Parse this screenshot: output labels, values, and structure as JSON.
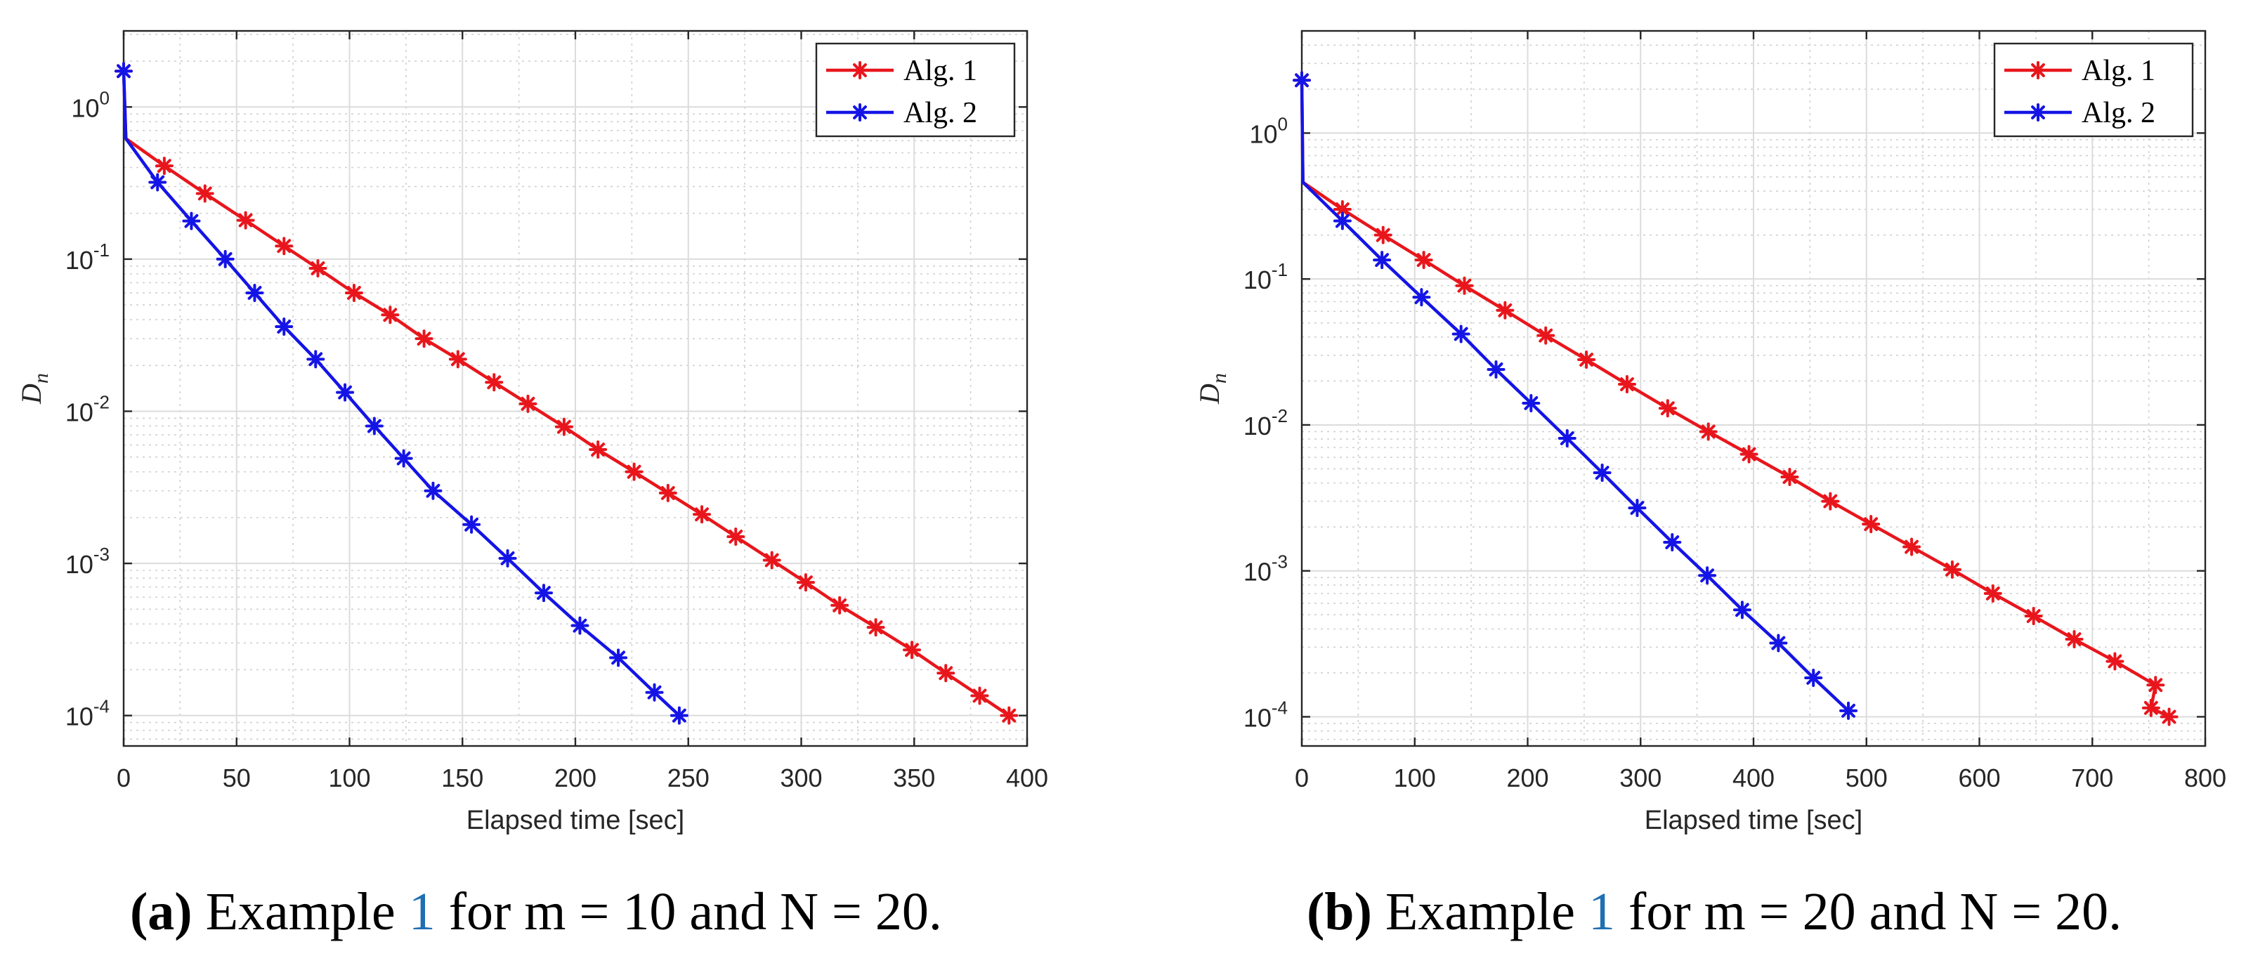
{
  "chart_data": [
    {
      "type": "line",
      "yscale": "log",
      "xlabel": "Elapsed time [sec]",
      "ylabel": "D_n",
      "ylabel_base": "D",
      "ylabel_sub": "n",
      "xlim": [
        0,
        400
      ],
      "ylim_exponents": [
        -4.2,
        0.5
      ],
      "xticks": [
        0,
        50,
        100,
        150,
        200,
        250,
        300,
        350,
        400
      ],
      "yticks": [
        -4,
        -3,
        -2,
        -1,
        0
      ],
      "grid": true,
      "legend_position": "top-right",
      "series": [
        {
          "name": "Alg. 1",
          "color": "#e8161c",
          "points": [
            [
              0,
              1.72
            ],
            [
              1,
              0.62
            ],
            [
              18,
              0.41
            ],
            [
              36,
              0.27
            ],
            [
              54,
              0.18
            ],
            [
              71,
              0.122
            ],
            [
              86,
              0.087
            ],
            [
              102,
              0.06
            ],
            [
              118,
              0.043
            ],
            [
              133,
              0.03
            ],
            [
              148,
              0.022
            ],
            [
              164,
              0.0155
            ],
            [
              179,
              0.0112
            ],
            [
              195,
              0.0079
            ],
            [
              210,
              0.0056
            ],
            [
              226,
              0.004
            ],
            [
              241,
              0.0029
            ],
            [
              256,
              0.0021
            ],
            [
              271,
              0.0015
            ],
            [
              287,
              0.00105
            ],
            [
              302,
              0.00075
            ],
            [
              317,
              0.00053
            ],
            [
              333,
              0.00038
            ],
            [
              349,
              0.00027
            ],
            [
              364,
              0.00019
            ],
            [
              379,
              0.000135
            ],
            [
              392,
              0.0001
            ]
          ],
          "marker_start": 2
        },
        {
          "name": "Alg. 2",
          "color": "#1414e6",
          "points": [
            [
              0,
              1.72
            ],
            [
              1,
              0.62
            ],
            [
              15,
              0.32
            ],
            [
              30,
              0.178
            ],
            [
              45,
              0.1
            ],
            [
              58,
              0.06
            ],
            [
              71,
              0.036
            ],
            [
              85,
              0.022
            ],
            [
              98,
              0.0133
            ],
            [
              111,
              0.008
            ],
            [
              124,
              0.0049
            ],
            [
              137,
              0.003
            ],
            [
              154,
              0.0018
            ],
            [
              170,
              0.00108
            ],
            [
              186,
              0.00064
            ],
            [
              202,
              0.00039
            ],
            [
              219,
              0.00024
            ],
            [
              235,
              0.000142
            ],
            [
              246,
              0.0001
            ]
          ],
          "marker_start": 2
        }
      ],
      "marker_first": 1.72
    },
    {
      "type": "line",
      "yscale": "log",
      "xlabel": "Elapsed time [sec]",
      "ylabel": "D_n",
      "ylabel_base": "D",
      "ylabel_sub": "n",
      "xlim": [
        0,
        800
      ],
      "ylim_exponents": [
        -4.2,
        0.7
      ],
      "xticks": [
        0,
        100,
        200,
        300,
        400,
        500,
        600,
        700,
        800
      ],
      "yticks": [
        -4,
        -3,
        -2,
        -1,
        0
      ],
      "grid": true,
      "legend_position": "top-right",
      "series": [
        {
          "name": "Alg. 1",
          "color": "#e8161c",
          "points": [
            [
              0,
              2.3
            ],
            [
              1,
              0.46
            ],
            [
              36,
              0.3
            ],
            [
              72,
              0.2
            ],
            [
              108,
              0.135
            ],
            [
              144,
              0.09
            ],
            [
              180,
              0.061
            ],
            [
              216,
              0.041
            ],
            [
              252,
              0.028
            ],
            [
              288,
              0.019
            ],
            [
              324,
              0.013
            ],
            [
              360,
              0.009
            ],
            [
              396,
              0.0063
            ],
            [
              432,
              0.0044
            ],
            [
              468,
              0.003
            ],
            [
              504,
              0.00209
            ],
            [
              540,
              0.00146
            ],
            [
              576,
              0.00102
            ],
            [
              612,
              0.0007
            ],
            [
              648,
              0.00049
            ],
            [
              684,
              0.00034
            ],
            [
              720,
              0.00024
            ],
            [
              756,
              0.000165
            ],
            [
              752,
              0.000115
            ],
            [
              768,
              0.0001
            ]
          ],
          "marker_start": 2
        },
        {
          "name": "Alg. 2",
          "color": "#1414e6",
          "points": [
            [
              0,
              2.3
            ],
            [
              1,
              0.46
            ],
            [
              36,
              0.25
            ],
            [
              71,
              0.135
            ],
            [
              106,
              0.075
            ],
            [
              141,
              0.042
            ],
            [
              172,
              0.024
            ],
            [
              203,
              0.0141
            ],
            [
              235,
              0.0081
            ],
            [
              266,
              0.0047
            ],
            [
              297,
              0.0027
            ],
            [
              328,
              0.00157
            ],
            [
              359,
              0.00093
            ],
            [
              390,
              0.00054
            ],
            [
              422,
              0.00032
            ],
            [
              453,
              0.000185
            ],
            [
              484,
              0.00011
            ]
          ],
          "marker_start": 2
        }
      ]
    }
  ],
  "captions": {
    "a": {
      "label": "(a)",
      "pre": " Example ",
      "ref": "1",
      "post": " for m = 10 and N = 20."
    },
    "b": {
      "label": "(b)",
      "pre": " Example ",
      "ref": "1",
      "post": " for m = 20 and N = 20."
    }
  }
}
